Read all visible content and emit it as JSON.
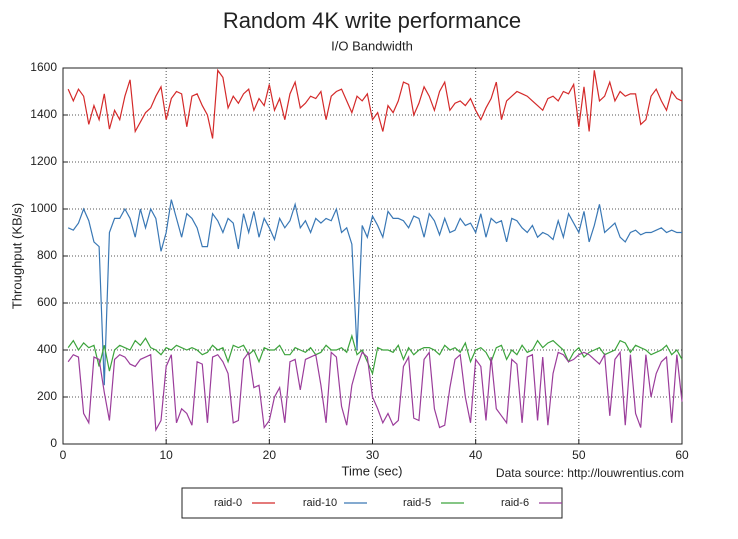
{
  "chart_data": {
    "type": "line",
    "title": "Random 4K write performance",
    "subtitle": "I/O Bandwidth",
    "x_label": "Time (sec)",
    "y_label": "Throughput (KB/s)",
    "annotation": "Data source: http://louwrentius.com",
    "xlim": [
      0,
      60
    ],
    "xticks": [
      0,
      10,
      20,
      30,
      40,
      50,
      60
    ],
    "ylim": [
      0,
      1600
    ],
    "yticks": [
      0,
      200,
      400,
      600,
      800,
      1000,
      1200,
      1400,
      1600
    ],
    "grid": true,
    "legend": "bottom",
    "x": [
      0.5,
      1,
      1.5,
      2,
      2.5,
      3,
      3.5,
      4,
      4.5,
      5,
      5.5,
      6,
      6.5,
      7,
      7.5,
      8,
      8.5,
      9,
      9.5,
      10,
      10.5,
      11,
      11.5,
      12,
      12.5,
      13,
      13.5,
      14,
      14.5,
      15,
      15.5,
      16,
      16.5,
      17,
      17.5,
      18,
      18.5,
      19,
      19.5,
      20,
      20.5,
      21,
      21.5,
      22,
      22.5,
      23,
      23.5,
      24,
      24.5,
      25,
      25.5,
      26,
      26.5,
      27,
      27.5,
      28,
      28.5,
      29,
      29.5,
      30,
      30.5,
      31,
      31.5,
      32,
      32.5,
      33,
      33.5,
      34,
      34.5,
      35,
      35.5,
      36,
      36.5,
      37,
      37.5,
      38,
      38.5,
      39,
      39.5,
      40,
      40.5,
      41,
      41.5,
      42,
      42.5,
      43,
      43.5,
      44,
      44.5,
      45,
      45.5,
      46,
      46.5,
      47,
      47.5,
      48,
      48.5,
      49,
      49.5,
      50,
      50.5,
      51,
      51.5,
      52,
      52.5,
      53,
      53.5,
      54,
      54.5,
      55,
      55.5,
      56,
      56.5,
      57,
      57.5,
      58,
      58.5,
      59,
      59.5,
      60
    ],
    "series": [
      {
        "name": "raid-0",
        "color": "#d42a2a",
        "values": [
          1510,
          1460,
          1510,
          1480,
          1360,
          1440,
          1380,
          1490,
          1340,
          1420,
          1380,
          1480,
          1550,
          1330,
          1370,
          1410,
          1430,
          1480,
          1520,
          1380,
          1470,
          1500,
          1490,
          1350,
          1480,
          1490,
          1440,
          1400,
          1300,
          1590,
          1560,
          1430,
          1480,
          1450,
          1490,
          1510,
          1420,
          1470,
          1440,
          1530,
          1420,
          1470,
          1380,
          1490,
          1540,
          1430,
          1450,
          1480,
          1470,
          1500,
          1380,
          1480,
          1500,
          1510,
          1460,
          1410,
          1480,
          1460,
          1490,
          1380,
          1410,
          1330,
          1440,
          1410,
          1460,
          1540,
          1530,
          1400,
          1450,
          1520,
          1480,
          1420,
          1500,
          1540,
          1420,
          1450,
          1460,
          1440,
          1470,
          1420,
          1380,
          1430,
          1470,
          1540,
          1380,
          1460,
          1480,
          1500,
          1490,
          1480,
          1460,
          1440,
          1420,
          1470,
          1480,
          1460,
          1500,
          1490,
          1530,
          1350,
          1520,
          1330,
          1590,
          1460,
          1480,
          1540,
          1460,
          1500,
          1480,
          1490,
          1490,
          1360,
          1380,
          1480,
          1510,
          1460,
          1420,
          1500,
          1470,
          1460
        ]
      },
      {
        "name": "raid-10",
        "color": "#3a78b5",
        "values": [
          920,
          910,
          940,
          1000,
          950,
          860,
          840,
          250,
          900,
          960,
          960,
          1000,
          960,
          880,
          1000,
          920,
          1000,
          960,
          820,
          900,
          1040,
          960,
          880,
          980,
          960,
          920,
          840,
          840,
          980,
          950,
          900,
          960,
          940,
          830,
          980,
          900,
          990,
          880,
          960,
          920,
          870,
          960,
          920,
          950,
          1020,
          920,
          950,
          900,
          960,
          940,
          960,
          950,
          1000,
          900,
          920,
          850,
          400,
          930,
          880,
          970,
          930,
          880,
          990,
          960,
          960,
          950,
          920,
          970,
          960,
          880,
          980,
          950,
          890,
          960,
          900,
          910,
          960,
          930,
          940,
          900,
          980,
          880,
          960,
          940,
          950,
          860,
          960,
          950,
          920,
          900,
          930,
          880,
          900,
          890,
          870,
          950,
          880,
          980,
          940,
          900,
          990,
          860,
          930,
          1020,
          900,
          920,
          940,
          880,
          860,
          900,
          910,
          890,
          900,
          900,
          910,
          920,
          900,
          910,
          900,
          900
        ]
      },
      {
        "name": "raid-5",
        "color": "#3ca33c",
        "values": [
          410,
          440,
          400,
          430,
          410,
          420,
          330,
          420,
          310,
          400,
          420,
          410,
          400,
          440,
          420,
          450,
          410,
          400,
          380,
          410,
          400,
          420,
          410,
          400,
          410,
          400,
          380,
          390,
          420,
          400,
          410,
          350,
          420,
          410,
          420,
          380,
          400,
          350,
          410,
          400,
          400,
          420,
          380,
          380,
          410,
          400,
          390,
          410,
          380,
          390,
          420,
          400,
          400,
          410,
          390,
          460,
          380,
          400,
          350,
          300,
          410,
          400,
          400,
          390,
          420,
          360,
          410,
          380,
          400,
          410,
          410,
          400,
          380,
          420,
          400,
          410,
          390,
          430,
          350,
          400,
          410,
          390,
          350,
          410,
          420,
          360,
          400,
          380,
          420,
          390,
          400,
          440,
          410,
          430,
          440,
          420,
          400,
          350,
          390,
          410,
          370,
          390,
          400,
          410,
          380,
          390,
          400,
          440,
          430,
          390,
          420,
          410,
          400,
          380,
          390,
          400,
          420,
          380,
          400,
          360
        ]
      },
      {
        "name": "raid-6",
        "color": "#9b3d9b",
        "values": [
          350,
          380,
          370,
          130,
          90,
          370,
          360,
          220,
          100,
          360,
          380,
          370,
          340,
          330,
          360,
          370,
          380,
          60,
          100,
          330,
          380,
          90,
          150,
          130,
          80,
          350,
          340,
          90,
          370,
          380,
          350,
          300,
          90,
          100,
          360,
          390,
          240,
          250,
          70,
          100,
          200,
          240,
          90,
          350,
          360,
          230,
          360,
          370,
          380,
          250,
          90,
          390,
          370,
          160,
          80,
          250,
          330,
          390,
          370,
          200,
          150,
          90,
          130,
          80,
          100,
          330,
          370,
          110,
          100,
          360,
          390,
          150,
          70,
          80,
          240,
          360,
          380,
          200,
          90,
          360,
          330,
          100,
          370,
          150,
          120,
          90,
          360,
          340,
          90,
          370,
          380,
          100,
          370,
          80,
          300,
          390,
          380,
          350,
          360,
          380,
          390,
          380,
          360,
          340,
          380,
          120,
          360,
          390,
          80,
          380,
          130,
          70,
          380,
          200,
          300,
          350,
          370,
          90,
          380,
          180
        ]
      }
    ]
  }
}
